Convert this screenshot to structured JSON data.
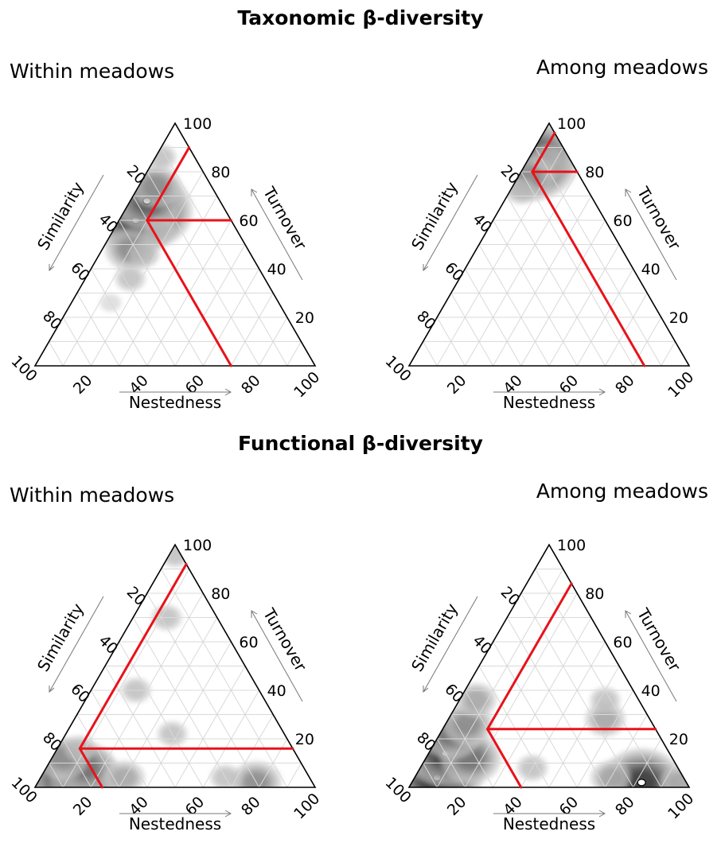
{
  "titles": {
    "taxonomic": "Taxonomic β-diversity",
    "functional": "Functional β-diversity"
  },
  "chart_data": [
    {
      "type": "ternary",
      "panel": "Within meadows",
      "section": "Taxonomic β-diversity",
      "axes": {
        "similarity": "Similarity",
        "turnover": "Turnover",
        "nestedness": "Nestedness"
      },
      "ticks": [
        20,
        40,
        60,
        80,
        100
      ],
      "centroid": {
        "similarity": 30,
        "turnover": 60,
        "nestedness": 10
      },
      "density_modes": [
        {
          "similarity": 28,
          "turnover": 64,
          "nestedness": 8,
          "level": 1.0
        },
        {
          "similarity": 34,
          "turnover": 60,
          "nestedness": 6,
          "level": 0.9
        },
        {
          "similarity": 26,
          "turnover": 68,
          "nestedness": 6,
          "level": 0.75
        },
        {
          "similarity": 20,
          "turnover": 74,
          "nestedness": 6,
          "level": 0.5
        },
        {
          "similarity": 42,
          "turnover": 48,
          "nestedness": 10,
          "level": 0.45
        },
        {
          "similarity": 38,
          "turnover": 46,
          "nestedness": 16,
          "level": 0.3
        },
        {
          "similarity": 48,
          "turnover": 36,
          "nestedness": 16,
          "level": 0.25
        },
        {
          "similarity": 28,
          "turnover": 56,
          "nestedness": 16,
          "level": 0.25
        },
        {
          "similarity": 12,
          "turnover": 86,
          "nestedness": 2,
          "level": 0.25
        },
        {
          "similarity": 60,
          "turnover": 26,
          "nestedness": 14,
          "level": 0.15
        }
      ],
      "accent_color": "#e8121a"
    },
    {
      "type": "ternary",
      "panel": "Among meadows",
      "section": "Taxonomic β-diversity",
      "axes": {
        "similarity": "Similarity",
        "turnover": "Turnover",
        "nestedness": "Nestedness"
      },
      "ticks": [
        20,
        40,
        60,
        80,
        100
      ],
      "centroid": {
        "similarity": 16,
        "turnover": 80,
        "nestedness": 4
      },
      "density_modes": [
        {
          "similarity": 14,
          "turnover": 84,
          "nestedness": 2,
          "level": 1.0
        },
        {
          "similarity": 10,
          "turnover": 88,
          "nestedness": 2,
          "level": 0.7
        },
        {
          "similarity": 18,
          "turnover": 78,
          "nestedness": 4,
          "level": 0.5
        },
        {
          "similarity": 24,
          "turnover": 72,
          "nestedness": 4,
          "level": 0.3
        },
        {
          "similarity": 8,
          "turnover": 86,
          "nestedness": 6,
          "level": 0.3
        }
      ],
      "accent_color": "#e8121a"
    },
    {
      "type": "ternary",
      "panel": "Within meadows",
      "section": "Functional β-diversity",
      "axes": {
        "similarity": "Similarity",
        "turnover": "Turnover",
        "nestedness": "Nestedness"
      },
      "ticks": [
        20,
        40,
        60,
        80,
        100
      ],
      "centroid": {
        "similarity": 76,
        "turnover": 16,
        "nestedness": 8
      },
      "density_modes": [
        {
          "similarity": 90,
          "turnover": 2,
          "nestedness": 8,
          "level": 1.0
        },
        {
          "similarity": 86,
          "turnover": 4,
          "nestedness": 10,
          "level": 0.9
        },
        {
          "similarity": 80,
          "turnover": 4,
          "nestedness": 16,
          "level": 0.8
        },
        {
          "similarity": 78,
          "turnover": 8,
          "nestedness": 14,
          "level": 0.6
        },
        {
          "similarity": 84,
          "turnover": 12,
          "nestedness": 4,
          "level": 0.5
        },
        {
          "similarity": 76,
          "turnover": 16,
          "nestedness": 8,
          "level": 0.3
        },
        {
          "similarity": 66,
          "turnover": 4,
          "nestedness": 30,
          "level": 0.35
        },
        {
          "similarity": 20,
          "turnover": 2,
          "nestedness": 78,
          "level": 0.5
        },
        {
          "similarity": 30,
          "turnover": 4,
          "nestedness": 66,
          "level": 0.3
        },
        {
          "similarity": 2,
          "turnover": 96,
          "nestedness": 2,
          "level": 0.25
        },
        {
          "similarity": 18,
          "turnover": 70,
          "nestedness": 12,
          "level": 0.25
        },
        {
          "similarity": 44,
          "turnover": 40,
          "nestedness": 16,
          "level": 0.2
        },
        {
          "similarity": 40,
          "turnover": 22,
          "nestedness": 38,
          "level": 0.2
        }
      ],
      "accent_color": "#e8121a"
    },
    {
      "type": "ternary",
      "panel": "Among meadows",
      "section": "Functional β-diversity",
      "axes": {
        "similarity": "Similarity",
        "turnover": "Turnover",
        "nestedness": "Nestedness"
      },
      "ticks": [
        20,
        40,
        60,
        80,
        100
      ],
      "centroid": {
        "similarity": 60,
        "turnover": 24,
        "nestedness": 16
      },
      "density_modes": [
        {
          "similarity": 88,
          "turnover": 4,
          "nestedness": 8,
          "level": 1.0
        },
        {
          "similarity": 80,
          "turnover": 14,
          "nestedness": 6,
          "level": 0.85
        },
        {
          "similarity": 72,
          "turnover": 12,
          "nestedness": 16,
          "level": 0.6
        },
        {
          "similarity": 74,
          "turnover": 22,
          "nestedness": 4,
          "level": 0.6
        },
        {
          "similarity": 66,
          "turnover": 26,
          "nestedness": 8,
          "level": 0.45
        },
        {
          "similarity": 58,
          "turnover": 36,
          "nestedness": 6,
          "level": 0.35
        },
        {
          "similarity": 52,
          "turnover": 8,
          "nestedness": 40,
          "level": 0.3
        },
        {
          "similarity": 16,
          "turnover": 2,
          "nestedness": 82,
          "level": 0.9
        },
        {
          "similarity": 26,
          "turnover": 4,
          "nestedness": 70,
          "level": 0.35
        },
        {
          "similarity": 2,
          "turnover": 2,
          "nestedness": 96,
          "level": 0.4
        },
        {
          "similarity": 16,
          "turnover": 28,
          "nestedness": 56,
          "level": 0.35
        },
        {
          "similarity": 12,
          "turnover": 36,
          "nestedness": 52,
          "level": 0.25
        }
      ],
      "accent_color": "#e8121a"
    }
  ]
}
